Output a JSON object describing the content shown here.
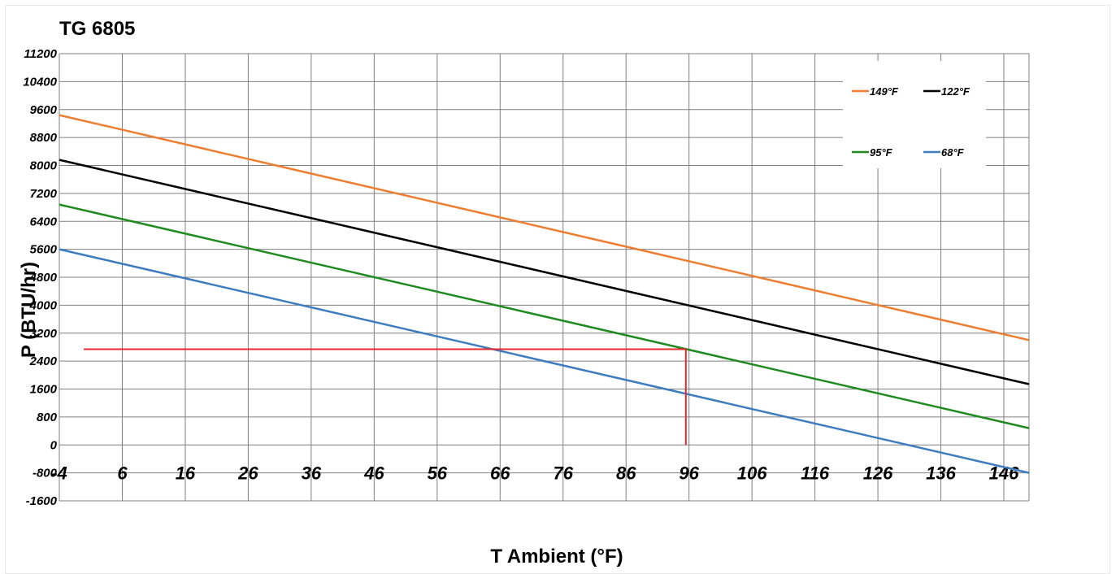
{
  "chart_data": {
    "type": "line",
    "title": "TG 6805",
    "xlabel": "T Ambient (°F)",
    "ylabel": "P (BTU/hr)",
    "xlim": [
      -4,
      150
    ],
    "ylim": [
      -1600,
      11200
    ],
    "x_ticks": [
      -4,
      6,
      16,
      26,
      36,
      46,
      56,
      66,
      76,
      86,
      96,
      106,
      116,
      126,
      136,
      146
    ],
    "y_ticks": [
      -1600,
      -800,
      0,
      800,
      1600,
      2400,
      3200,
      4000,
      4800,
      5600,
      6400,
      7200,
      8000,
      8800,
      9600,
      10400,
      11200
    ],
    "grid": true,
    "legend_position": "top-right",
    "series": [
      {
        "name": "149°F",
        "color": "#ED7D31",
        "x": [
          -4,
          150
        ],
        "y": [
          9440,
          3000
        ]
      },
      {
        "name": "122°F",
        "color": "#000000",
        "x": [
          -4,
          150
        ],
        "y": [
          8160,
          1740
        ]
      },
      {
        "name": "95°F",
        "color": "#1F8A1F",
        "x": [
          -4,
          150
        ],
        "y": [
          6880,
          480
        ]
      },
      {
        "name": "68°F",
        "color": "#3E7CC0",
        "x": [
          -4,
          150
        ],
        "y": [
          5600,
          -800
        ]
      }
    ],
    "annotations": [
      {
        "kind": "reference-line",
        "color": "#E8282B",
        "x": [
          0,
          95.5,
          95.5
        ],
        "y": [
          2740,
          2740,
          0
        ]
      }
    ]
  }
}
